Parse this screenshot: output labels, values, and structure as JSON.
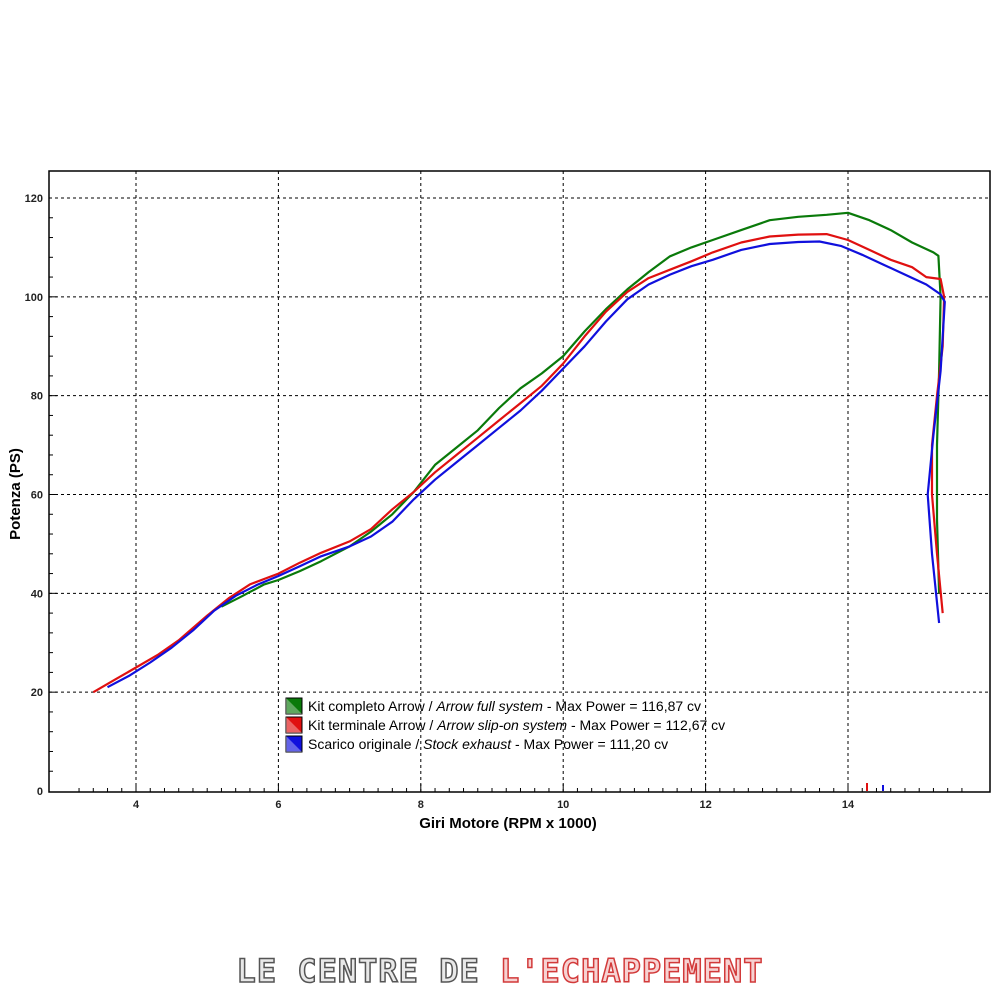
{
  "chart_data": {
    "type": "line",
    "xlabel": "Giri Motore (RPM x 1000)",
    "ylabel": "Potenza (PS)",
    "xlim": [
      3.0,
      15.7
    ],
    "ylim": [
      0,
      120
    ],
    "x_ticks": [
      4,
      6,
      8,
      10,
      12,
      14
    ],
    "y_ticks": [
      0,
      20,
      40,
      60,
      80,
      100,
      120
    ],
    "grid": true,
    "legend_placement": "bottom-center",
    "series": [
      {
        "name_parts": [
          "Kit completo Arrow / ",
          "Arrow full system",
          " - Max Power = 116,87 cv"
        ],
        "color": "#0a7a0a",
        "points": [
          [
            5.2,
            37.3
          ],
          [
            5.5,
            39.5
          ],
          [
            5.8,
            41.8
          ],
          [
            6.0,
            42.7
          ],
          [
            6.3,
            44.5
          ],
          [
            6.6,
            46.5
          ],
          [
            7.0,
            49.5
          ],
          [
            7.3,
            52.5
          ],
          [
            7.6,
            56
          ],
          [
            7.9,
            60.5
          ],
          [
            8.2,
            66
          ],
          [
            8.5,
            69.5
          ],
          [
            8.8,
            73
          ],
          [
            9.1,
            77.5
          ],
          [
            9.4,
            81.5
          ],
          [
            9.7,
            84.5
          ],
          [
            10.0,
            88
          ],
          [
            10.3,
            93
          ],
          [
            10.6,
            97.5
          ],
          [
            10.9,
            101.5
          ],
          [
            11.2,
            105
          ],
          [
            11.5,
            108.2
          ],
          [
            11.8,
            110
          ],
          [
            12.1,
            111.5
          ],
          [
            12.5,
            113.5
          ],
          [
            12.9,
            115.5
          ],
          [
            13.3,
            116.2
          ],
          [
            13.7,
            116.6
          ],
          [
            14.0,
            117
          ],
          [
            14.3,
            115.5
          ],
          [
            14.6,
            113.5
          ],
          [
            14.9,
            111
          ],
          [
            15.2,
            109
          ],
          [
            15.27,
            108.3
          ],
          [
            15.3,
            100
          ],
          [
            15.28,
            85
          ],
          [
            15.25,
            70
          ],
          [
            15.25,
            55
          ],
          [
            15.28,
            40
          ]
        ]
      },
      {
        "name_parts": [
          "Kit terminale Arrow / ",
          "Arrow slip-on system",
          " - Max Power = 112,67 cv"
        ],
        "color": "#e01010",
        "points": [
          [
            3.4,
            20
          ],
          [
            3.7,
            22.5
          ],
          [
            4.0,
            25
          ],
          [
            4.3,
            27.5
          ],
          [
            4.6,
            30.5
          ],
          [
            5.0,
            35.5
          ],
          [
            5.3,
            39
          ],
          [
            5.6,
            41.8
          ],
          [
            6.0,
            44
          ],
          [
            6.3,
            46.2
          ],
          [
            6.6,
            48.2
          ],
          [
            7.0,
            50.5
          ],
          [
            7.3,
            53
          ],
          [
            7.6,
            57
          ],
          [
            7.9,
            60.5
          ],
          [
            8.2,
            64.5
          ],
          [
            8.5,
            68
          ],
          [
            8.8,
            71.5
          ],
          [
            9.1,
            75
          ],
          [
            9.4,
            78.5
          ],
          [
            9.7,
            82
          ],
          [
            10.0,
            86.5
          ],
          [
            10.3,
            92
          ],
          [
            10.6,
            97
          ],
          [
            10.9,
            101
          ],
          [
            11.2,
            103.8
          ],
          [
            11.5,
            105.5
          ],
          [
            11.8,
            107.2
          ],
          [
            12.1,
            109
          ],
          [
            12.5,
            111
          ],
          [
            12.9,
            112.2
          ],
          [
            13.3,
            112.6
          ],
          [
            13.7,
            112.7
          ],
          [
            14.0,
            111.5
          ],
          [
            14.3,
            109.5
          ],
          [
            14.6,
            107.5
          ],
          [
            14.9,
            106
          ],
          [
            15.1,
            104
          ],
          [
            15.3,
            103.6
          ],
          [
            15.35,
            100
          ],
          [
            15.33,
            90
          ],
          [
            15.25,
            80
          ],
          [
            15.18,
            70
          ],
          [
            15.18,
            60
          ],
          [
            15.25,
            48
          ],
          [
            15.33,
            36
          ]
        ]
      },
      {
        "name_parts": [
          "Scarico originale / ",
          "Stock exhaust",
          " - Max Power = 111,20 cv"
        ],
        "color": "#1010dd",
        "points": [
          [
            3.6,
            21
          ],
          [
            3.9,
            23.3
          ],
          [
            4.2,
            26
          ],
          [
            4.5,
            29
          ],
          [
            4.8,
            32.5
          ],
          [
            5.1,
            36.5
          ],
          [
            5.4,
            39.5
          ],
          [
            5.7,
            41.7
          ],
          [
            6.0,
            43.5
          ],
          [
            6.3,
            45.5
          ],
          [
            6.6,
            47.5
          ],
          [
            7.0,
            49.5
          ],
          [
            7.3,
            51.5
          ],
          [
            7.6,
            54.5
          ],
          [
            7.9,
            59
          ],
          [
            8.2,
            63
          ],
          [
            8.5,
            66.5
          ],
          [
            8.8,
            70
          ],
          [
            9.1,
            73.5
          ],
          [
            9.4,
            77
          ],
          [
            9.7,
            81
          ],
          [
            10.0,
            85.5
          ],
          [
            10.3,
            90
          ],
          [
            10.6,
            95
          ],
          [
            10.9,
            99.5
          ],
          [
            11.2,
            102.5
          ],
          [
            11.5,
            104.5
          ],
          [
            11.8,
            106.2
          ],
          [
            12.1,
            107.5
          ],
          [
            12.5,
            109.5
          ],
          [
            12.9,
            110.7
          ],
          [
            13.3,
            111.1
          ],
          [
            13.6,
            111.2
          ],
          [
            13.9,
            110.3
          ],
          [
            14.2,
            108.5
          ],
          [
            14.5,
            106.5
          ],
          [
            14.8,
            104.5
          ],
          [
            15.1,
            102.5
          ],
          [
            15.3,
            100.5
          ],
          [
            15.36,
            99
          ],
          [
            15.3,
            85
          ],
          [
            15.2,
            72
          ],
          [
            15.12,
            60
          ],
          [
            15.18,
            48
          ],
          [
            15.28,
            34
          ]
        ]
      }
    ]
  },
  "watermark": {
    "part_a": "LE CENTRE DE ",
    "part_b": "L'ECHAPPEMENT"
  }
}
